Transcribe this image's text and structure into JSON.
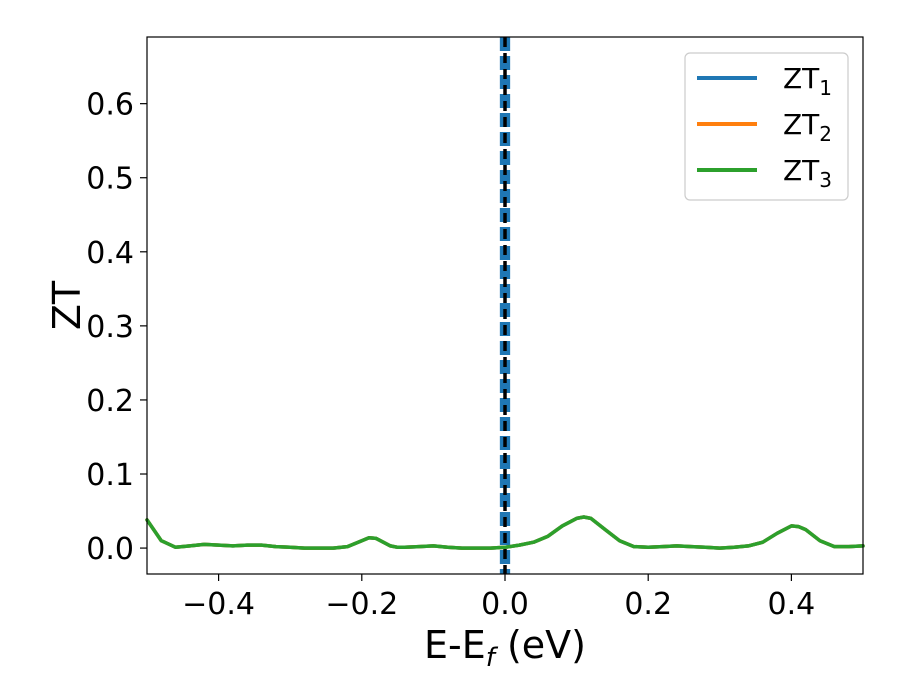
{
  "chart_data": {
    "type": "line",
    "title": "",
    "xlabel": {
      "base": "E-E",
      "sub": "f",
      "suffix": " (eV)"
    },
    "ylabel": "ZT",
    "xlim": [
      -0.5,
      0.5
    ],
    "ylim": [
      -0.035,
      0.69
    ],
    "xticks": [
      -0.4,
      -0.2,
      0.0,
      0.2,
      0.4
    ],
    "xtick_labels": [
      "−0.4",
      "−0.2",
      "0.0",
      "0.2",
      "0.4"
    ],
    "yticks": [
      0.0,
      0.1,
      0.2,
      0.3,
      0.4,
      0.5,
      0.6
    ],
    "ytick_labels": [
      "0.0",
      "0.1",
      "0.2",
      "0.3",
      "0.4",
      "0.5",
      "0.6"
    ],
    "grid": false,
    "legend": {
      "placement": "top-right"
    },
    "x": [
      -0.5,
      -0.48,
      -0.46,
      -0.44,
      -0.42,
      -0.4,
      -0.38,
      -0.36,
      -0.34,
      -0.32,
      -0.3,
      -0.28,
      -0.26,
      -0.24,
      -0.22,
      -0.2,
      -0.19,
      -0.18,
      -0.17,
      -0.16,
      -0.15,
      -0.14,
      -0.12,
      -0.1,
      -0.08,
      -0.06,
      -0.04,
      -0.02,
      0.0,
      0.02,
      0.04,
      0.06,
      0.08,
      0.1,
      0.11,
      0.12,
      0.14,
      0.16,
      0.18,
      0.2,
      0.22,
      0.24,
      0.26,
      0.28,
      0.3,
      0.32,
      0.34,
      0.36,
      0.38,
      0.4,
      0.41,
      0.42,
      0.44,
      0.46,
      0.48,
      0.5
    ],
    "series": [
      {
        "name": {
          "base": "ZT",
          "sub": "1"
        },
        "color": "#1f77b4",
        "values": [
          0.038,
          0.01,
          0.001,
          0.003,
          0.005,
          0.004,
          0.003,
          0.004,
          0.004,
          0.002,
          0.001,
          0.0,
          0.0,
          0.0,
          0.002,
          0.01,
          0.014,
          0.013,
          0.008,
          0.003,
          0.001,
          0.001,
          0.002,
          0.003,
          0.001,
          0.0,
          0.0,
          0.0,
          0.001,
          0.004,
          0.008,
          0.016,
          0.03,
          0.04,
          0.042,
          0.04,
          0.025,
          0.01,
          0.002,
          0.001,
          0.002,
          0.003,
          0.002,
          0.001,
          0.0,
          0.001,
          0.003,
          0.008,
          0.02,
          0.03,
          0.029,
          0.025,
          0.01,
          0.002,
          0.002,
          0.003
        ]
      },
      {
        "name": {
          "base": "ZT",
          "sub": "2"
        },
        "color": "#ff7f0e",
        "values": [
          0.038,
          0.01,
          0.001,
          0.003,
          0.005,
          0.004,
          0.003,
          0.004,
          0.004,
          0.002,
          0.001,
          0.0,
          0.0,
          0.0,
          0.002,
          0.01,
          0.014,
          0.013,
          0.008,
          0.003,
          0.001,
          0.001,
          0.002,
          0.003,
          0.001,
          0.0,
          0.0,
          0.0,
          0.001,
          0.004,
          0.008,
          0.016,
          0.03,
          0.04,
          0.042,
          0.04,
          0.025,
          0.01,
          0.002,
          0.001,
          0.002,
          0.003,
          0.002,
          0.001,
          0.0,
          0.001,
          0.003,
          0.008,
          0.02,
          0.03,
          0.029,
          0.025,
          0.01,
          0.002,
          0.002,
          0.003
        ]
      },
      {
        "name": {
          "base": "ZT",
          "sub": "3"
        },
        "color": "#2ca02c",
        "values": [
          0.038,
          0.01,
          0.001,
          0.003,
          0.005,
          0.004,
          0.003,
          0.004,
          0.004,
          0.002,
          0.001,
          0.0,
          0.0,
          0.0,
          0.002,
          0.01,
          0.014,
          0.013,
          0.008,
          0.003,
          0.001,
          0.001,
          0.002,
          0.003,
          0.001,
          0.0,
          0.0,
          0.0,
          0.001,
          0.004,
          0.008,
          0.016,
          0.03,
          0.04,
          0.042,
          0.04,
          0.025,
          0.01,
          0.002,
          0.001,
          0.002,
          0.003,
          0.002,
          0.001,
          0.0,
          0.001,
          0.003,
          0.008,
          0.02,
          0.03,
          0.029,
          0.025,
          0.01,
          0.002,
          0.002,
          0.003
        ]
      }
    ],
    "vertical_lines": [
      {
        "x": -0.003,
        "color": "#1f77b4",
        "style": "dashed"
      },
      {
        "x": 0.003,
        "color": "#1f77b4",
        "style": "dashed"
      },
      {
        "x": 0.0,
        "color": "#000000",
        "style": "dashed"
      }
    ]
  }
}
